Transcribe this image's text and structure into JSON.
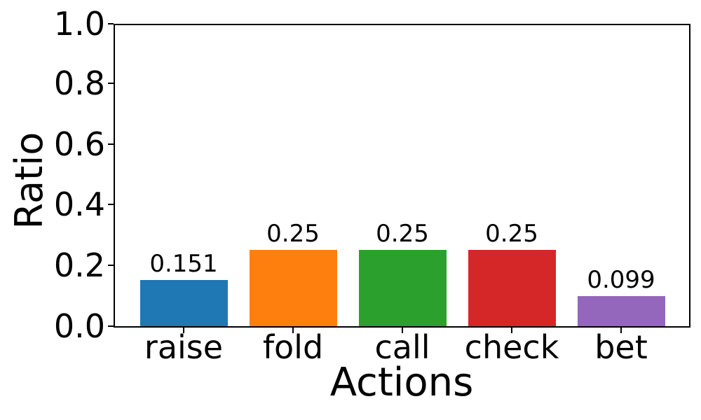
{
  "figure": {
    "background_color": "#ffffff",
    "text_color": "#000000",
    "spine_color": "#000000"
  },
  "chart_data": {
    "type": "bar",
    "title": "",
    "xlabel": "Actions",
    "ylabel": "Ratio",
    "categories": [
      "raise",
      "fold",
      "call",
      "check",
      "bet"
    ],
    "values": [
      0.151,
      0.25,
      0.25,
      0.25,
      0.099
    ],
    "value_labels": [
      "0.151",
      "0.25",
      "0.25",
      "0.25",
      "0.099"
    ],
    "bar_colors": [
      "#1f77b4",
      "#ff7f0e",
      "#2ca02c",
      "#d62728",
      "#9467bd"
    ],
    "ylim": [
      0.0,
      1.0
    ],
    "ytick_labels": [
      "0.0",
      "0.2",
      "0.4",
      "0.6",
      "0.8",
      "1.0"
    ],
    "grid": false,
    "legend_position": "none"
  }
}
